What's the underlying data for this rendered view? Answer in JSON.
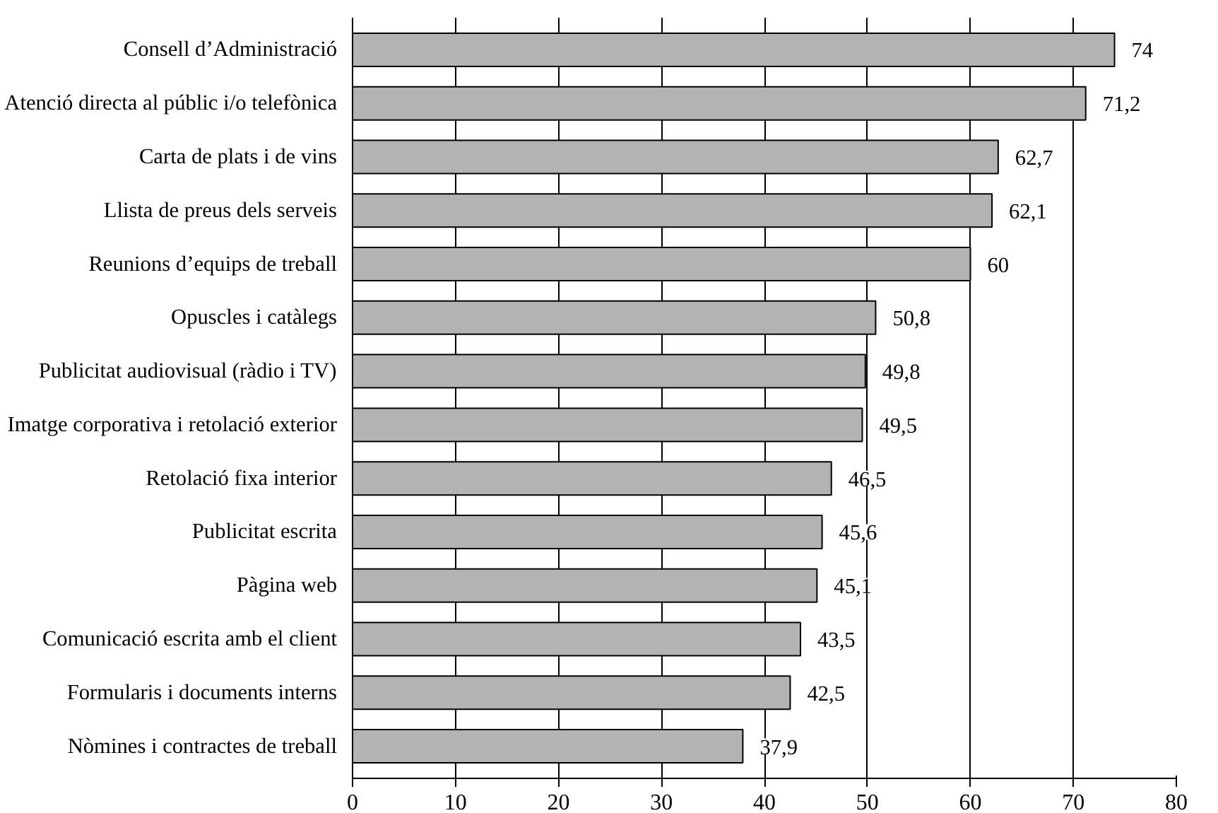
{
  "chart_data": {
    "type": "bar",
    "orientation": "horizontal",
    "categories": [
      "Consell d’Administració",
      "Atenció directa al públic i/o telefònica",
      "Carta de plats i de vins",
      "Llista de preus dels serveis",
      "Reunions d’equips de treball",
      "Opuscles i catàlegs",
      "Publicitat audiovisual (ràdio i TV)",
      "Imatge corporativa i retolació exterior",
      "Retolació fixa interior",
      "Publicitat escrita",
      "Pàgina web",
      "Comunicació escrita amb el client",
      "Formularis i documents interns",
      "Nòmines i contractes de treball"
    ],
    "values": [
      74,
      71.2,
      62.7,
      62.1,
      60,
      50.8,
      49.8,
      49.5,
      46.5,
      45.6,
      45.1,
      43.5,
      42.5,
      37.9
    ],
    "value_labels": [
      "74",
      "71,2",
      "62,7",
      "62,1",
      "60",
      "50,8",
      "49,8",
      "49,5",
      "46,5",
      "45,6",
      "45,1",
      "43,5",
      "42,5",
      "37,9"
    ],
    "color": "#b3b3b3",
    "xlim": [
      0,
      80
    ],
    "xticks": [
      0,
      10,
      20,
      30,
      40,
      50,
      60,
      70,
      80
    ],
    "grid": "x"
  }
}
